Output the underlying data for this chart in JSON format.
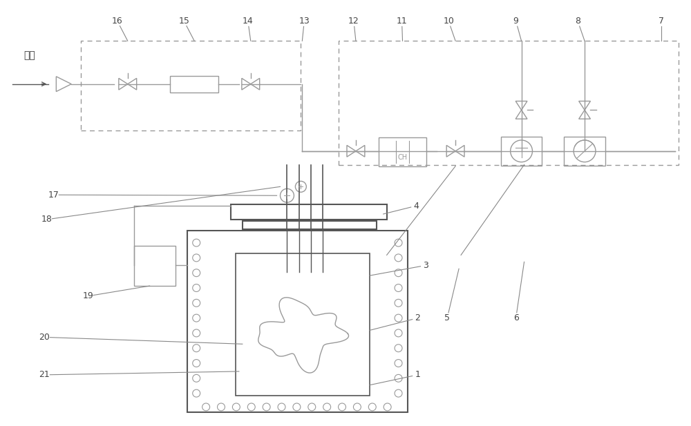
{
  "bg_color": "#ffffff",
  "lc": "#999999",
  "lc_dark": "#555555",
  "lw": 1.0,
  "lw_thick": 1.5,
  "fig_width": 10.0,
  "fig_height": 6.17,
  "dpi": 100,
  "components": {
    "inlet_label": "进气",
    "ch_label": "CH",
    "label_fontsize": 9,
    "ch_fontsize": 7
  }
}
